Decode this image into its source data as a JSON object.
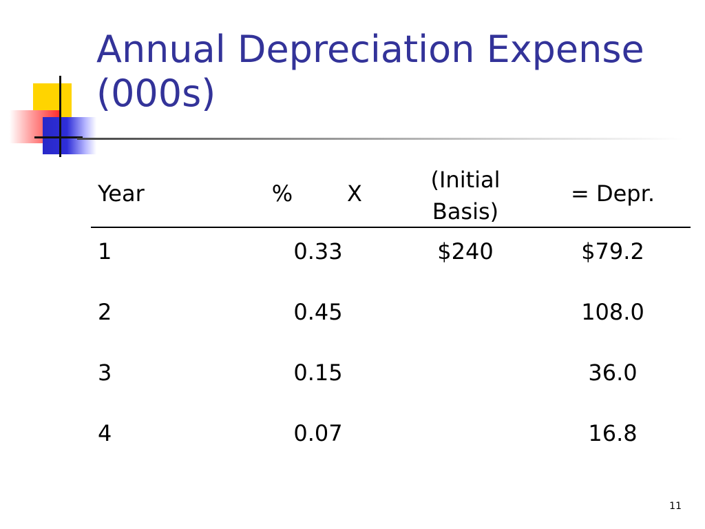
{
  "slide": {
    "title": "Annual Depreciation Expense (000s)",
    "page_number": "11"
  },
  "table": {
    "headers": {
      "year": "Year",
      "percent": "%",
      "times": "X",
      "basis": "(Initial Basis)",
      "depr": "= Depr."
    },
    "rows": [
      {
        "year": "1",
        "percent": "0.33",
        "basis": "$240",
        "depr": "$79.2"
      },
      {
        "year": "2",
        "percent": "0.45",
        "basis": "",
        "depr": "108.0"
      },
      {
        "year": "3",
        "percent": "0.15",
        "basis": "",
        "depr": "36.0"
      },
      {
        "year": "4",
        "percent": "0.07",
        "basis": "",
        "depr": "16.8"
      }
    ]
  },
  "colors": {
    "title": "#333399",
    "accent_yellow": "#ffd400",
    "accent_red": "#ff2e2e",
    "accent_blue": "#2e2ed8"
  }
}
